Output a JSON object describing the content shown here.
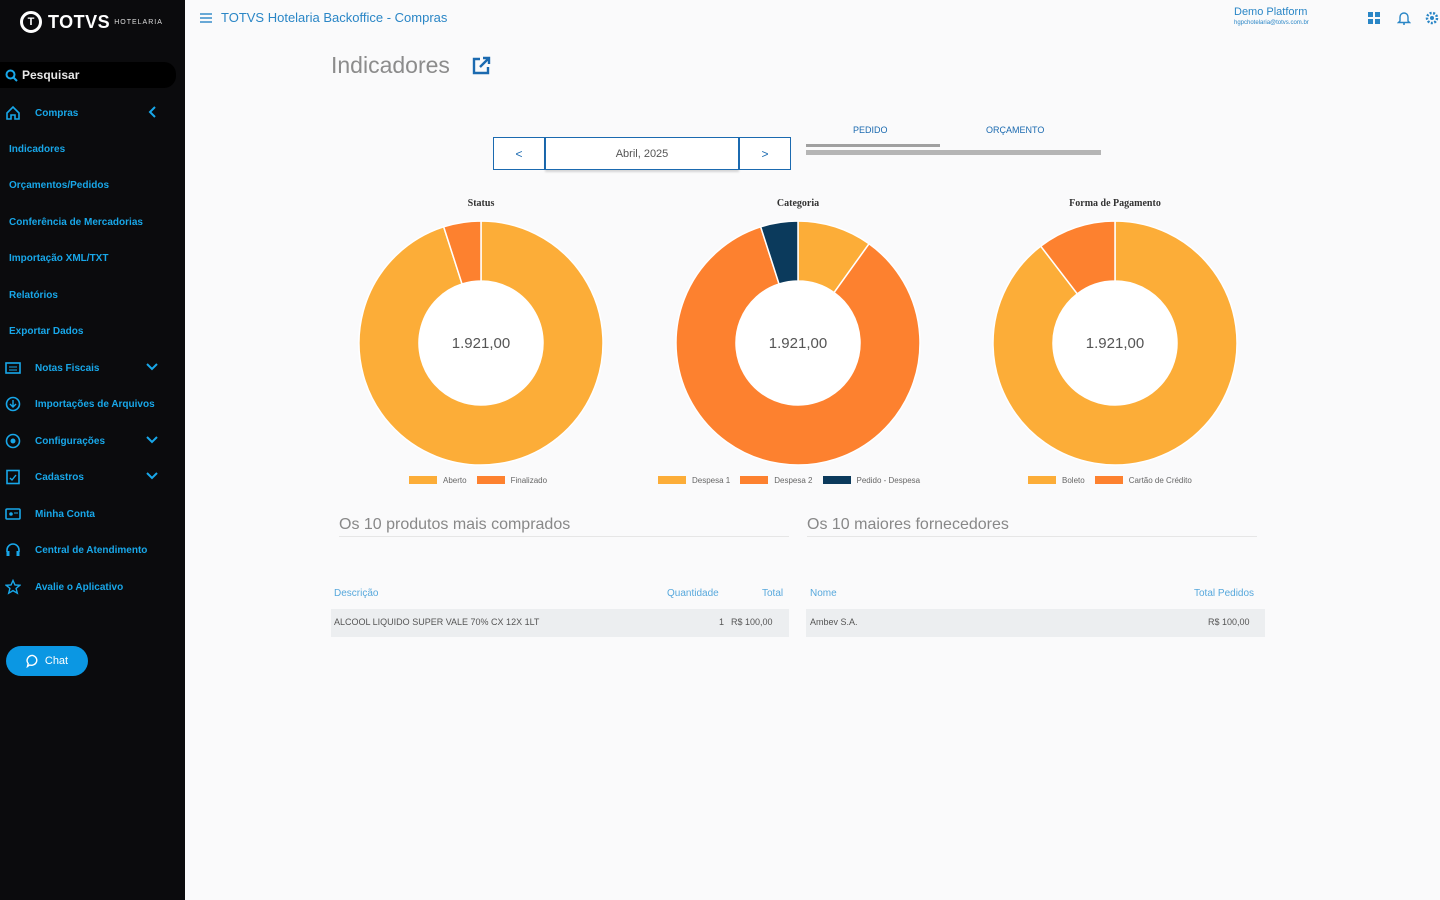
{
  "app": {
    "logo_brand": "TOTVS",
    "logo_sub": "HOTELARIA",
    "title": "TOTVS Hotelaria Backoffice - Compras"
  },
  "user": {
    "name": "Demo Platform",
    "email": "hgpchotelaria@totvs.com.br"
  },
  "sidebar": {
    "search_placeholder": "Pesquisar",
    "items": [
      {
        "label": "Compras",
        "icon": "home-icon"
      },
      {
        "label": "Indicadores"
      },
      {
        "label": "Orçamentos/Pedidos"
      },
      {
        "label": "Conferência de Mercadorias"
      },
      {
        "label": "Importação XML/TXT"
      },
      {
        "label": "Relatórios"
      },
      {
        "label": "Exportar Dados"
      },
      {
        "label": "Notas Fiscais",
        "icon": "invoice-icon"
      },
      {
        "label": "Importações de Arquivos",
        "icon": "file-import-icon"
      },
      {
        "label": "Configurações",
        "icon": "settings-icon"
      },
      {
        "label": "Cadastros",
        "icon": "register-icon"
      },
      {
        "label": "Minha Conta",
        "icon": "account-icon"
      },
      {
        "label": "Central de Atendimento",
        "icon": "headset-icon"
      },
      {
        "label": "Avalie o Aplicativo",
        "icon": "star-icon"
      }
    ],
    "chat_label": "Chat"
  },
  "page": {
    "title": "Indicadores"
  },
  "date_nav": {
    "prev": "<",
    "label": "Abril, 2025",
    "next": ">"
  },
  "tabs": [
    "PEDIDO",
    "ORÇAMENTO"
  ],
  "colors": {
    "yellow": "#fcad38",
    "orange": "#fd812f",
    "navy": "#0b3a5c",
    "accent": "#18a7e9"
  },
  "chart_data": [
    {
      "type": "pie",
      "title": "Status",
      "center_label": "1.921,00",
      "series": [
        {
          "name": "Aberto",
          "value": 1826,
          "color": "#fcad38"
        },
        {
          "name": "Finalizado",
          "value": 95,
          "color": "#fd812f"
        }
      ]
    },
    {
      "type": "pie",
      "title": "Categoria",
      "center_label": "1.921,00",
      "series": [
        {
          "name": "Despesa 1",
          "value": 190,
          "color": "#fcad38"
        },
        {
          "name": "Despesa 2",
          "value": 1636,
          "color": "#fd812f"
        },
        {
          "name": "Pedido - Despesa",
          "value": 95,
          "color": "#0b3a5c"
        }
      ]
    },
    {
      "type": "pie",
      "title": "Forma de Pagamento",
      "center_label": "1.921,00",
      "series": [
        {
          "name": "Boleto",
          "value": 1721,
          "color": "#fcad38"
        },
        {
          "name": "Cartão de Crédito",
          "value": 200,
          "color": "#fd812f"
        }
      ]
    }
  ],
  "top_products": {
    "title": "Os 10 produtos mais comprados",
    "headers": {
      "desc": "Descrição",
      "qty": "Quantidade",
      "total": "Total"
    },
    "rows": [
      {
        "desc": "ALCOOL LIQUIDO SUPER VALE 70% CX 12X 1LT",
        "qty": "1",
        "total": "R$ 100,00"
      }
    ]
  },
  "top_suppliers": {
    "title": "Os 10 maiores fornecedores",
    "headers": {
      "name": "Nome",
      "total": "Total Pedidos"
    },
    "rows": [
      {
        "name": "Ambev S.A.",
        "total": "R$ 100,00"
      }
    ]
  }
}
